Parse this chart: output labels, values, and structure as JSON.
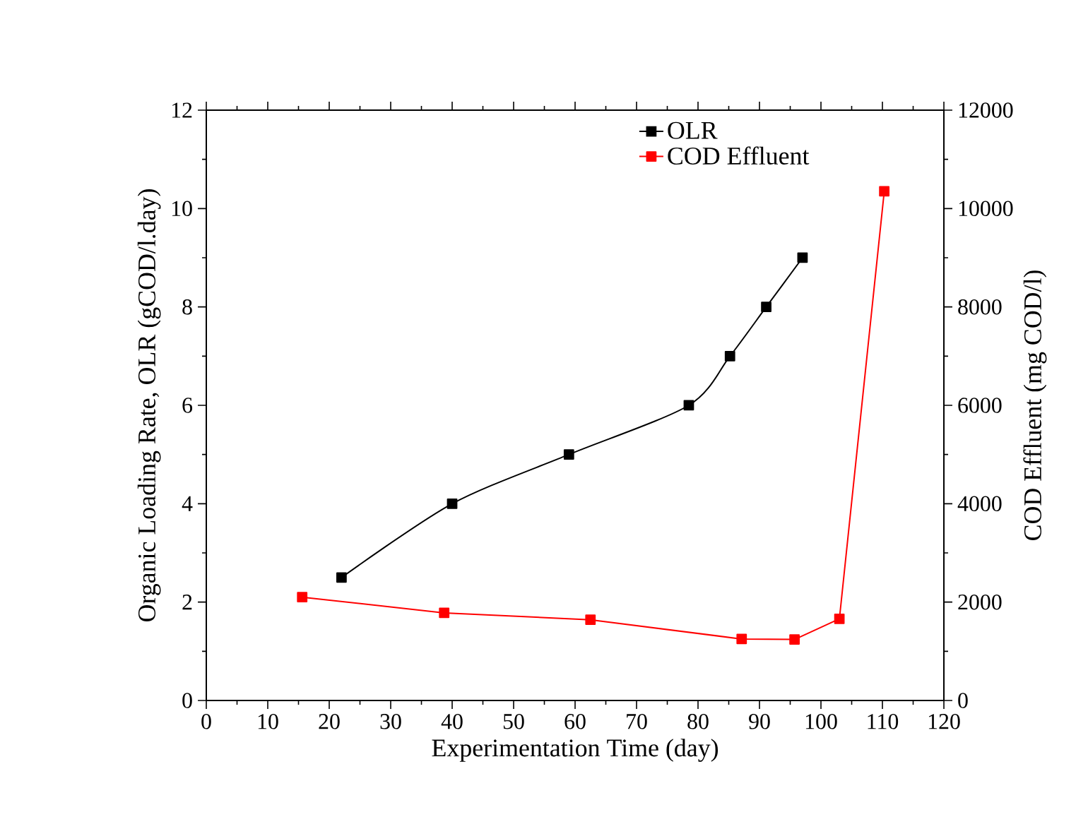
{
  "chart_data": {
    "type": "line",
    "xlabel": "Experimentation Time (day)",
    "ylabel": "Organic Loading Rate, OLR (gCOD/l.day)",
    "y2label": "COD Effluent (mg COD/l)",
    "series": [
      {
        "name": "OLR",
        "color": "#000000",
        "x": [
          22,
          40,
          59,
          78.5,
          85.2,
          91.1,
          97
        ],
        "values": [
          2.5,
          4,
          5,
          6,
          7,
          8,
          9
        ]
      },
      {
        "name": "COD Effluent",
        "color": "#ff0000",
        "axis": "y2",
        "x": [
          15.6,
          38.7,
          62.5,
          87.1,
          95.7,
          103,
          110.3
        ],
        "values": [
          2100,
          1780,
          1640,
          1250,
          1240,
          1660,
          10350
        ]
      }
    ],
    "xlim": [
      0,
      120
    ],
    "xticks": [
      0,
      10,
      20,
      30,
      40,
      50,
      60,
      70,
      80,
      90,
      100,
      110,
      120
    ],
    "ylim": [
      0,
      12
    ],
    "yticks": [
      0,
      2,
      4,
      6,
      8,
      10,
      12
    ],
    "y2lim": [
      0,
      12000
    ],
    "y2ticks": [
      0,
      2000,
      4000,
      6000,
      8000,
      10000,
      12000
    ],
    "marker": "square",
    "line_style": "solid",
    "legend": "top",
    "grid": false
  }
}
